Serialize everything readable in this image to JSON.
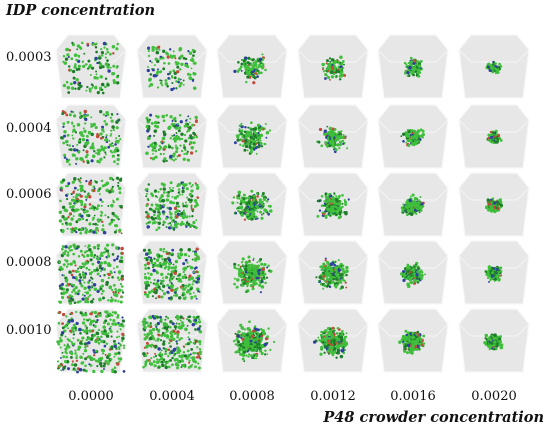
{
  "y_title": "IDP concentration",
  "x_title": "P48 crowder concentration",
  "rows": [
    "0.0003",
    "0.0004",
    "0.0006",
    "0.0008",
    "0.0010"
  ],
  "cols": [
    "0.0000",
    "0.0004",
    "0.0008",
    "0.0012",
    "0.0016",
    "0.0020"
  ],
  "colors": {
    "box_face": "#e6e7e6",
    "box_edge": "#f7f7f7",
    "particle_green": "#3fbf3c",
    "particle_dark": "#1e7d2a",
    "particle_blue": "#2d3fa0",
    "particle_red": "#c24a3a"
  }
}
